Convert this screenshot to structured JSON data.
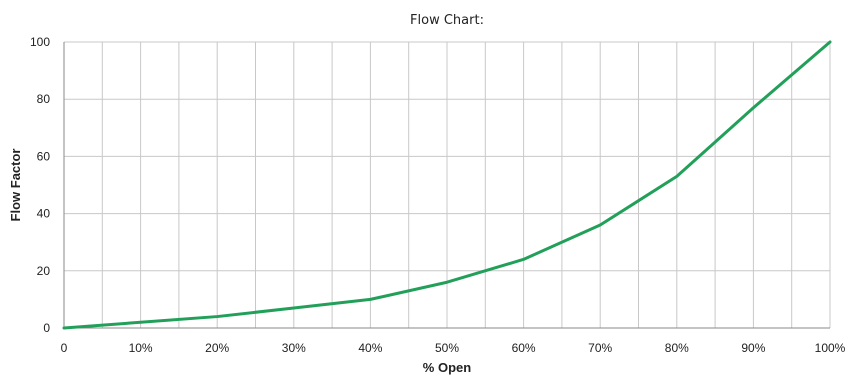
{
  "chart_data": {
    "type": "line",
    "title": "Flow Chart:",
    "xlabel": "% Open",
    "ylabel": "Flow Factor",
    "xlim": [
      0,
      100
    ],
    "ylim": [
      0,
      100
    ],
    "x_ticks": [
      0,
      10,
      20,
      30,
      40,
      50,
      60,
      70,
      80,
      90,
      100
    ],
    "x_tick_labels": [
      "0",
      "10%",
      "20%",
      "30%",
      "40%",
      "50%",
      "60%",
      "70%",
      "80%",
      "90%",
      "100%"
    ],
    "y_ticks": [
      0,
      20,
      40,
      60,
      80,
      100
    ],
    "y_tick_labels": [
      "0",
      "20",
      "40",
      "60",
      "80",
      "100"
    ],
    "x_minor_grid_step": 5,
    "grid": true,
    "legend": "none",
    "series": [
      {
        "color": "#22a05a",
        "x": [
          0,
          10,
          20,
          30,
          40,
          50,
          60,
          70,
          80,
          90,
          100
        ],
        "y": [
          0,
          2,
          4,
          7,
          10,
          16,
          24,
          36,
          53,
          77,
          100
        ]
      }
    ]
  }
}
